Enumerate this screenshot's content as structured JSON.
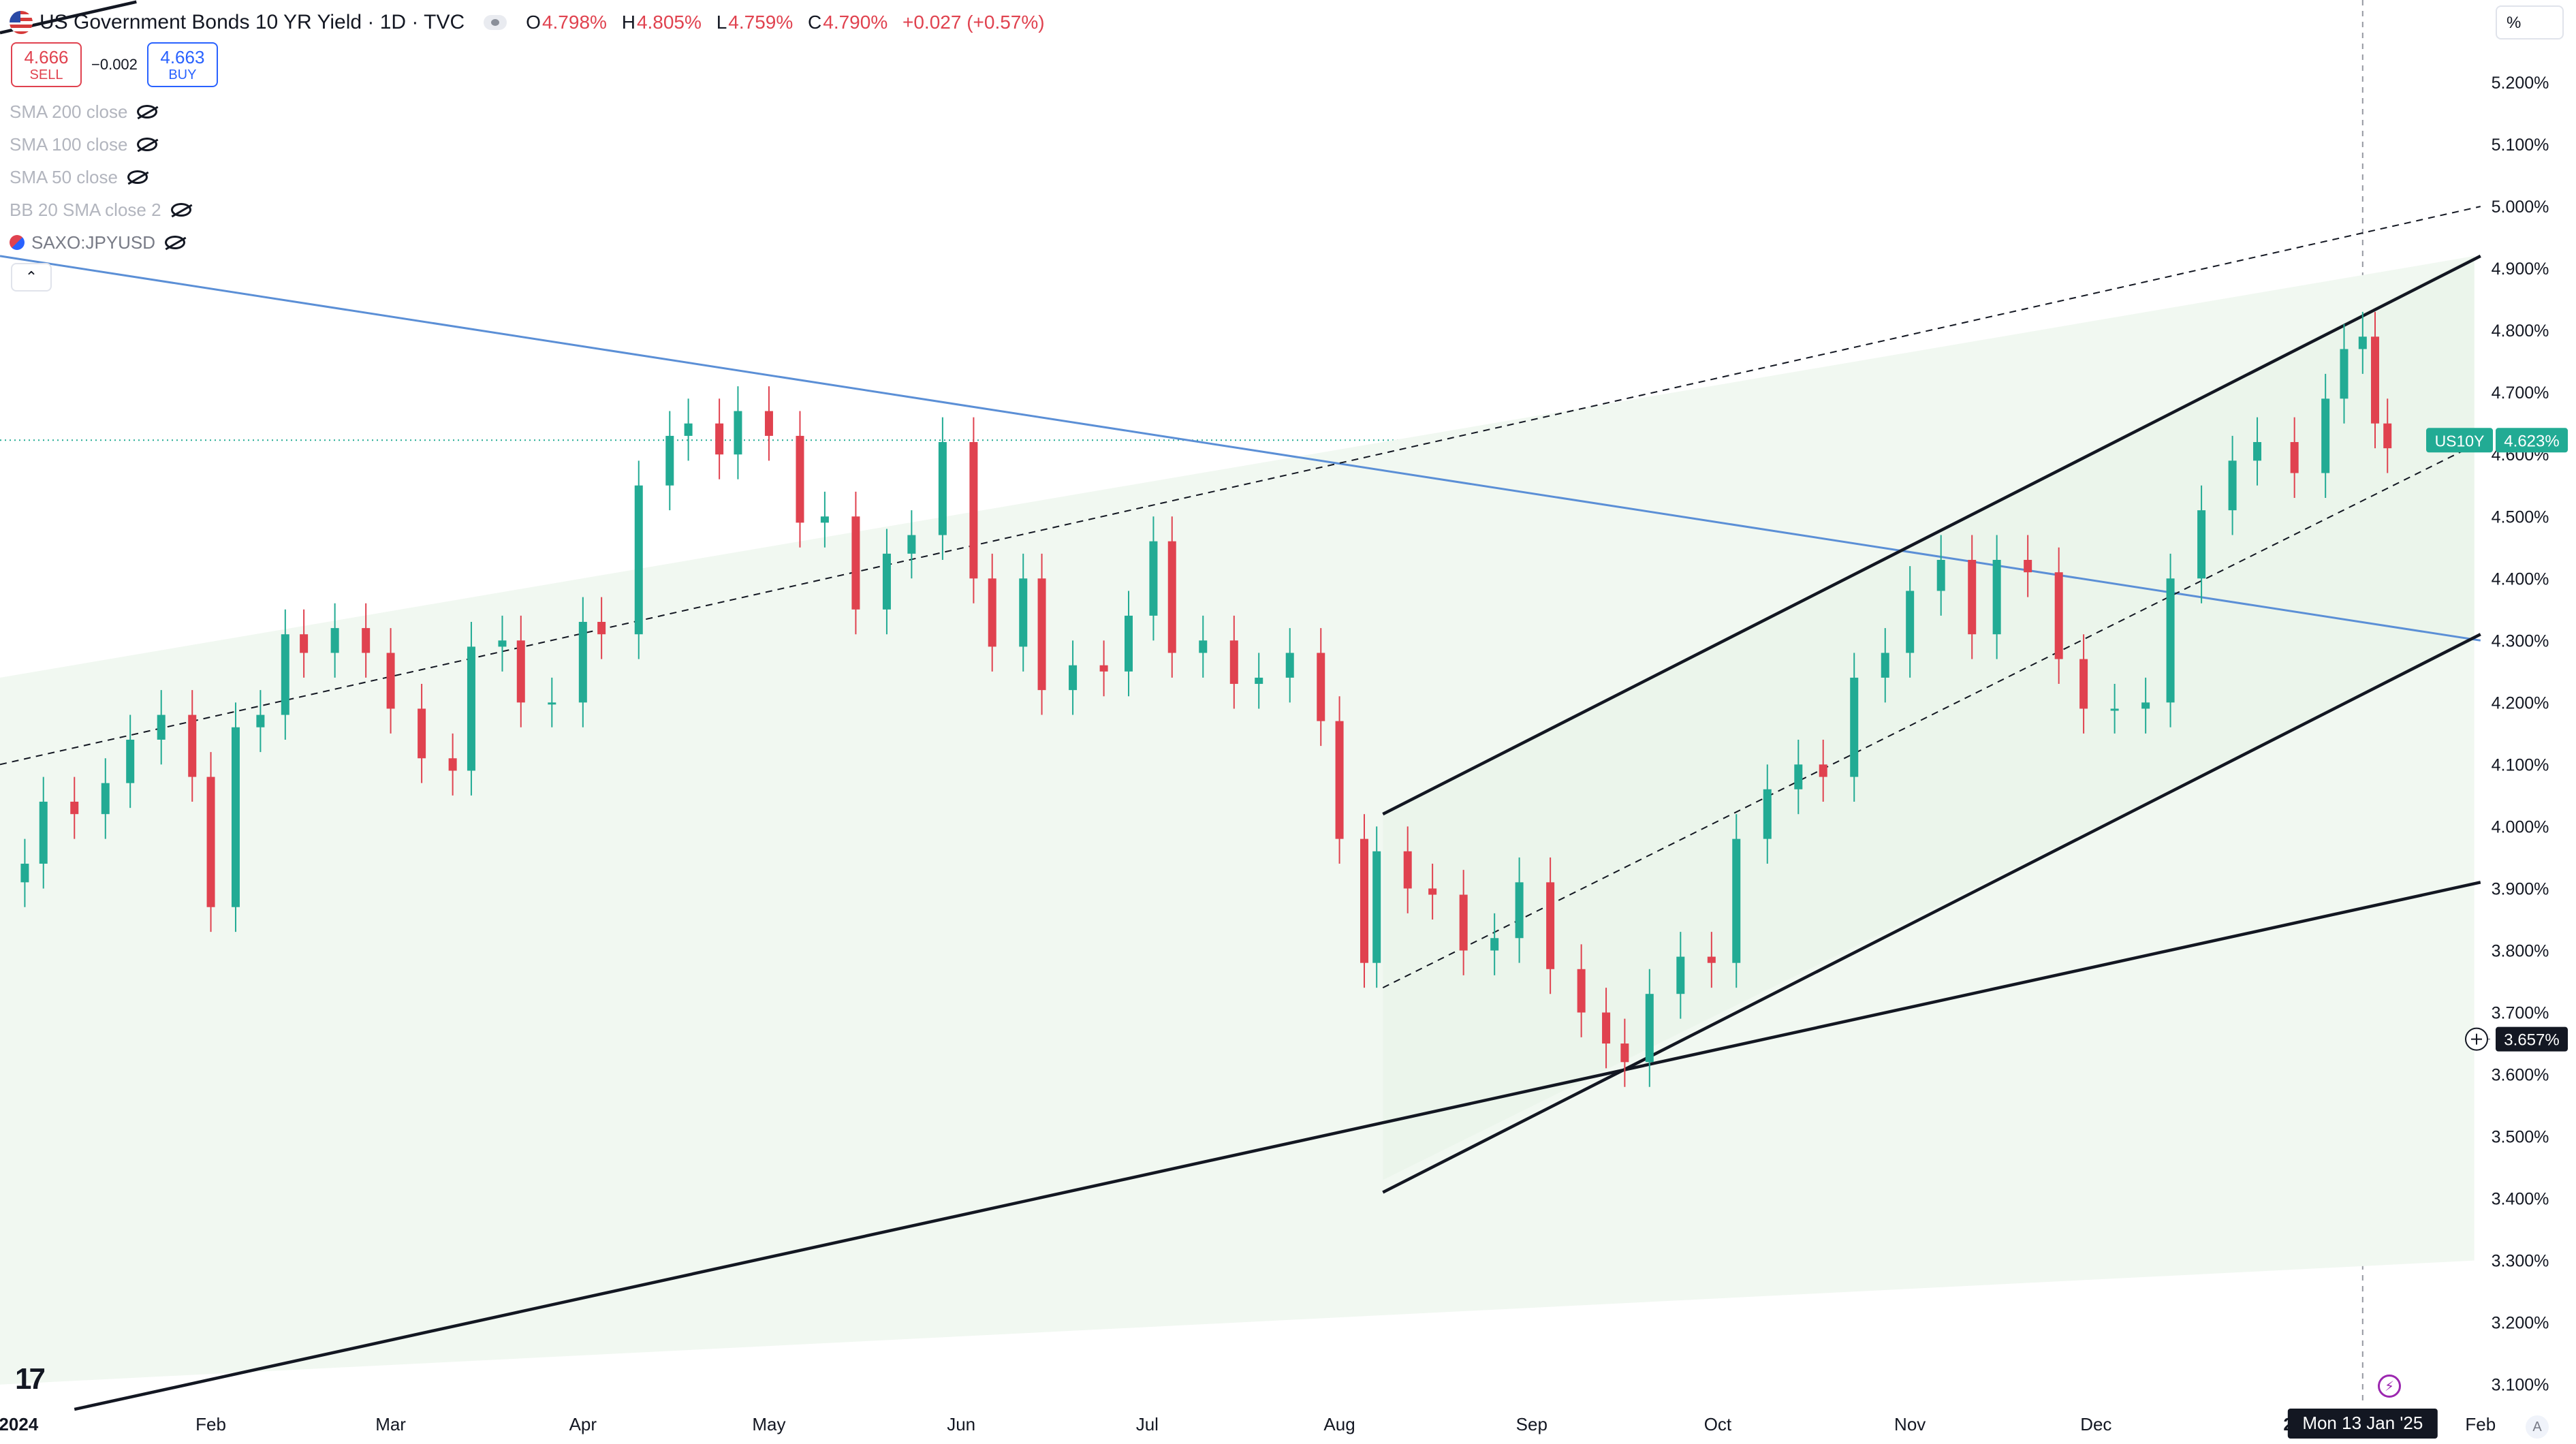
{
  "header": {
    "title": "US Government Bonds 10 YR Yield · 1D · TVC",
    "ohlc": {
      "o_label": "O",
      "o": "4.798%",
      "h_label": "H",
      "h": "4.805%",
      "l_label": "L",
      "l": "4.759%",
      "c_label": "C",
      "c": "4.790%",
      "change": "+0.027 (+0.57%)"
    },
    "sell_price": "4.666",
    "sell_label": "SELL",
    "spread": "−0.002",
    "buy_price": "4.663",
    "buy_label": "BUY"
  },
  "indicators": [
    {
      "label": "SMA 200 close"
    },
    {
      "label": "SMA 100 close"
    },
    {
      "label": "SMA 50 close"
    },
    {
      "label": "BB 20 SMA close 2"
    },
    {
      "label": "SAXO:JPYUSD"
    }
  ],
  "price_scale_unit": "%",
  "auto_label": "A",
  "colors": {
    "up": "#22ab94",
    "down": "#e0424f",
    "blue_line": "#5b8fd6",
    "channel_fill": "#f1f8f1"
  },
  "chart_data": {
    "type": "candlestick",
    "symbol": "US10Y",
    "last_price_label": "US10Y",
    "last_price": 4.623,
    "last_price_text": "4.623%",
    "crosshair_price": 3.657,
    "crosshair_price_text": "3.657%",
    "crosshair_date": "Mon 13 Jan '25",
    "ylim": [
      3.07,
      5.3
    ],
    "y_ticks": [
      "5.200%",
      "5.100%",
      "5.000%",
      "4.900%",
      "4.800%",
      "4.700%",
      "4.600%",
      "4.500%",
      "4.400%",
      "4.300%",
      "4.200%",
      "4.100%",
      "4.000%",
      "3.900%",
      "3.800%",
      "3.700%",
      "3.600%",
      "3.500%",
      "3.400%",
      "3.300%",
      "3.200%",
      "3.100%"
    ],
    "y_tick_values": [
      5.2,
      5.1,
      5.0,
      4.9,
      4.8,
      4.7,
      4.6,
      4.5,
      4.4,
      4.3,
      4.2,
      4.1,
      4.0,
      3.9,
      3.8,
      3.7,
      3.6,
      3.5,
      3.4,
      3.3,
      3.2,
      3.1
    ],
    "x_start": "2023-12-29",
    "x_end": "2025-02-03",
    "x_ticks": [
      {
        "label": "2024",
        "date": "2024-01-01",
        "bold": true
      },
      {
        "label": "Feb",
        "date": "2024-02-01"
      },
      {
        "label": "Mar",
        "date": "2024-03-01"
      },
      {
        "label": "Apr",
        "date": "2024-04-01"
      },
      {
        "label": "May",
        "date": "2024-05-01"
      },
      {
        "label": "Jun",
        "date": "2024-06-01"
      },
      {
        "label": "Jul",
        "date": "2024-07-01"
      },
      {
        "label": "Aug",
        "date": "2024-08-01"
      },
      {
        "label": "Sep",
        "date": "2024-09-01"
      },
      {
        "label": "Oct",
        "date": "2024-10-01"
      },
      {
        "label": "Nov",
        "date": "2024-11-01"
      },
      {
        "label": "Dec",
        "date": "2024-12-01"
      },
      {
        "label": "2",
        "date": "2025-01-01",
        "bold": true
      },
      {
        "label": "Feb",
        "date": "2025-02-01"
      }
    ],
    "close_series": [
      [
        "2024-01-02",
        3.94
      ],
      [
        "2024-01-05",
        4.04
      ],
      [
        "2024-01-10",
        4.02
      ],
      [
        "2024-01-15",
        4.07
      ],
      [
        "2024-01-19",
        4.14
      ],
      [
        "2024-01-24",
        4.18
      ],
      [
        "2024-01-29",
        4.08
      ],
      [
        "2024-02-01",
        3.87
      ],
      [
        "2024-02-05",
        4.16
      ],
      [
        "2024-02-09",
        4.18
      ],
      [
        "2024-02-13",
        4.31
      ],
      [
        "2024-02-16",
        4.28
      ],
      [
        "2024-02-21",
        4.32
      ],
      [
        "2024-02-26",
        4.28
      ],
      [
        "2024-03-01",
        4.19
      ],
      [
        "2024-03-06",
        4.11
      ],
      [
        "2024-03-11",
        4.09
      ],
      [
        "2024-03-14",
        4.29
      ],
      [
        "2024-03-19",
        4.3
      ],
      [
        "2024-03-22",
        4.2
      ],
      [
        "2024-03-27",
        4.2
      ],
      [
        "2024-04-01",
        4.33
      ],
      [
        "2024-04-04",
        4.31
      ],
      [
        "2024-04-10",
        4.55
      ],
      [
        "2024-04-15",
        4.63
      ],
      [
        "2024-04-18",
        4.65
      ],
      [
        "2024-04-23",
        4.6
      ],
      [
        "2024-04-26",
        4.67
      ],
      [
        "2024-05-01",
        4.63
      ],
      [
        "2024-05-06",
        4.49
      ],
      [
        "2024-05-10",
        4.5
      ],
      [
        "2024-05-15",
        4.35
      ],
      [
        "2024-05-20",
        4.44
      ],
      [
        "2024-05-24",
        4.47
      ],
      [
        "2024-05-29",
        4.62
      ],
      [
        "2024-06-03",
        4.4
      ],
      [
        "2024-06-06",
        4.29
      ],
      [
        "2024-06-11",
        4.4
      ],
      [
        "2024-06-14",
        4.22
      ],
      [
        "2024-06-19",
        4.26
      ],
      [
        "2024-06-24",
        4.25
      ],
      [
        "2024-06-28",
        4.34
      ],
      [
        "2024-07-02",
        4.46
      ],
      [
        "2024-07-05",
        4.28
      ],
      [
        "2024-07-10",
        4.3
      ],
      [
        "2024-07-15",
        4.23
      ],
      [
        "2024-07-19",
        4.24
      ],
      [
        "2024-07-24",
        4.28
      ],
      [
        "2024-07-29",
        4.17
      ],
      [
        "2024-08-01",
        3.98
      ],
      [
        "2024-08-05",
        3.78
      ],
      [
        "2024-08-07",
        3.96
      ],
      [
        "2024-08-12",
        3.9
      ],
      [
        "2024-08-16",
        3.89
      ],
      [
        "2024-08-21",
        3.8
      ],
      [
        "2024-08-26",
        3.82
      ],
      [
        "2024-08-30",
        3.91
      ],
      [
        "2024-09-04",
        3.77
      ],
      [
        "2024-09-09",
        3.7
      ],
      [
        "2024-09-13",
        3.65
      ],
      [
        "2024-09-16",
        3.62
      ],
      [
        "2024-09-20",
        3.73
      ],
      [
        "2024-09-25",
        3.79
      ],
      [
        "2024-09-30",
        3.78
      ],
      [
        "2024-10-04",
        3.98
      ],
      [
        "2024-10-09",
        4.06
      ],
      [
        "2024-10-14",
        4.1
      ],
      [
        "2024-10-18",
        4.08
      ],
      [
        "2024-10-23",
        4.24
      ],
      [
        "2024-10-28",
        4.28
      ],
      [
        "2024-11-01",
        4.38
      ],
      [
        "2024-11-06",
        4.43
      ],
      [
        "2024-11-11",
        4.31
      ],
      [
        "2024-11-15",
        4.43
      ],
      [
        "2024-11-20",
        4.41
      ],
      [
        "2024-11-25",
        4.27
      ],
      [
        "2024-11-29",
        4.19
      ],
      [
        "2024-12-04",
        4.19
      ],
      [
        "2024-12-09",
        4.2
      ],
      [
        "2024-12-13",
        4.4
      ],
      [
        "2024-12-18",
        4.51
      ],
      [
        "2024-12-23",
        4.59
      ],
      [
        "2024-12-27",
        4.62
      ],
      [
        "2025-01-02",
        4.57
      ],
      [
        "2025-01-07",
        4.69
      ],
      [
        "2025-01-10",
        4.77
      ],
      [
        "2025-01-13",
        4.79
      ],
      [
        "2025-01-15",
        4.65
      ],
      [
        "2025-01-17",
        4.61
      ]
    ]
  }
}
